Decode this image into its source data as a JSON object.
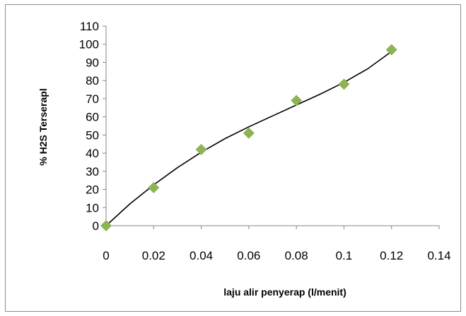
{
  "chart_data": {
    "type": "scatter",
    "title": "",
    "xlabel": "laju alir penyerap (l/menit)",
    "ylabel": "% H2S Terserapl",
    "xlim": [
      0,
      0.14
    ],
    "ylim": [
      0,
      110
    ],
    "x_ticks": [
      "0",
      "0.02",
      "0.04",
      "0.06",
      "0.08",
      "0.1",
      "0.12",
      "0.14"
    ],
    "y_ticks": [
      "0",
      "10",
      "20",
      "30",
      "40",
      "50",
      "60",
      "70",
      "80",
      "90",
      "100",
      "110"
    ],
    "grid": false,
    "legend": "none",
    "series": [
      {
        "marker": "diamond",
        "color": "#8db453",
        "points": [
          {
            "x": 0,
            "y": 0
          },
          {
            "x": 0.02,
            "y": 21
          },
          {
            "x": 0.04,
            "y": 42
          },
          {
            "x": 0.06,
            "y": 51
          },
          {
            "x": 0.08,
            "y": 69
          },
          {
            "x": 0.1,
            "y": 78
          },
          {
            "x": 0.12,
            "y": 97
          }
        ]
      }
    ],
    "trendline": {
      "type": "polynomial",
      "color": "#000000",
      "points": [
        {
          "x": 0,
          "y": 0
        },
        {
          "x": 0.01,
          "y": 12
        },
        {
          "x": 0.02,
          "y": 22.5
        },
        {
          "x": 0.03,
          "y": 32
        },
        {
          "x": 0.04,
          "y": 40.5
        },
        {
          "x": 0.05,
          "y": 48
        },
        {
          "x": 0.06,
          "y": 54.5
        },
        {
          "x": 0.07,
          "y": 60.5
        },
        {
          "x": 0.08,
          "y": 66.5
        },
        {
          "x": 0.09,
          "y": 72.5
        },
        {
          "x": 0.1,
          "y": 79
        },
        {
          "x": 0.11,
          "y": 86.5
        },
        {
          "x": 0.12,
          "y": 96
        }
      ]
    }
  }
}
